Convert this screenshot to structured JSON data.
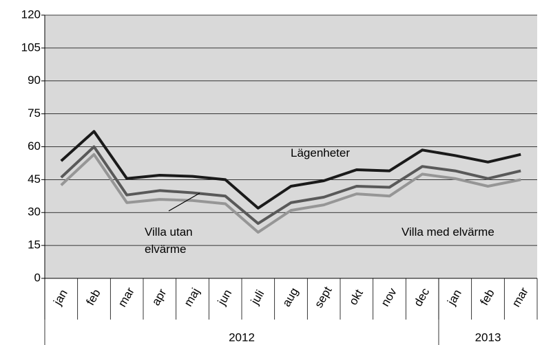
{
  "chart_data": {
    "type": "line",
    "categories": [
      "jan",
      "feb",
      "mar",
      "apr",
      "maj",
      "jun",
      "juli",
      "aug",
      "sept",
      "okt",
      "nov",
      "dec",
      "jan",
      "feb",
      "mar"
    ],
    "groups": [
      {
        "label": "2012",
        "count": 12
      },
      {
        "label": "2013",
        "count": 3
      }
    ],
    "series": [
      {
        "name": "Lägenheter",
        "color": "#1a1a1a",
        "values": [
          53.5,
          67,
          45.5,
          47,
          46.5,
          45,
          32,
          42,
          44.5,
          49.5,
          49,
          58.5,
          56,
          53,
          56.5
        ]
      },
      {
        "name": "Villa utan elvärme",
        "color": "#595959",
        "values": [
          46,
          60,
          38,
          40,
          39,
          37.5,
          25,
          34.5,
          37,
          42,
          41.5,
          51,
          49,
          45.5,
          49
        ]
      },
      {
        "name": "Villa med elvärme",
        "color": "#969696",
        "values": [
          42.5,
          56.5,
          34.5,
          36,
          35.5,
          34,
          21,
          31,
          33.5,
          38.5,
          37.5,
          47.5,
          45.5,
          42,
          45
        ]
      }
    ],
    "ylim": [
      0,
      120
    ],
    "yticks": [
      0,
      15,
      30,
      45,
      60,
      75,
      90,
      105,
      120
    ],
    "grid": true
  }
}
